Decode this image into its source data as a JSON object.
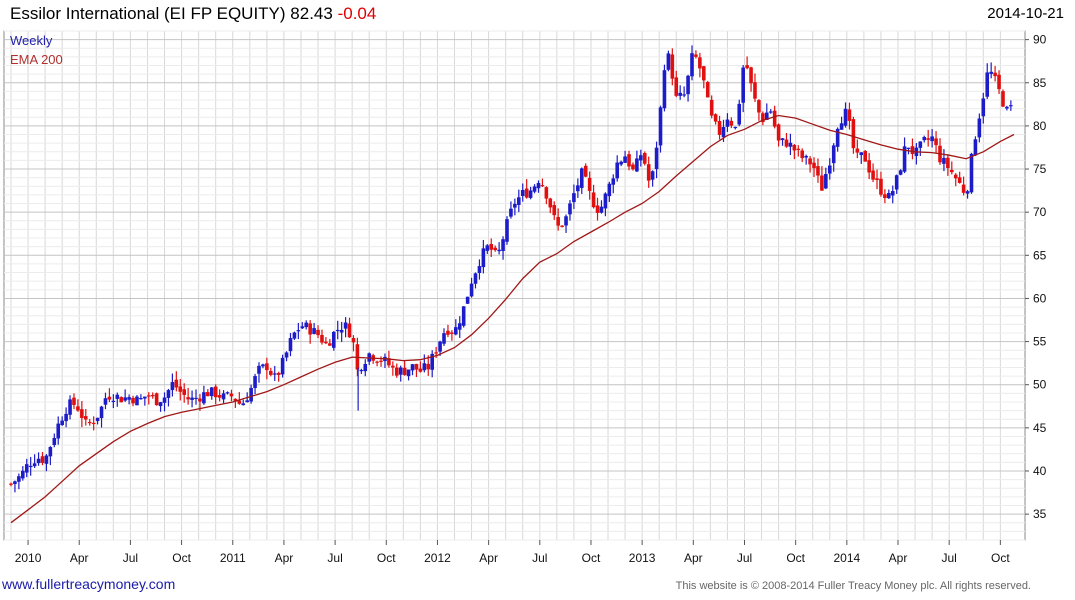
{
  "header": {
    "name": "Essilor International (EI FP EQUITY)",
    "last": "82.43",
    "change": "-0.04",
    "date": "2014-10-21"
  },
  "footer": {
    "link": "www.fullertreacymoney.com",
    "copyright": "This website is © 2008-2014 Fuller Treacy Money plc. All rights reserved."
  },
  "colors": {
    "up": "#1c1cc8",
    "down": "#e01010",
    "ema": "#a01818",
    "grid": "#d8d8d8"
  },
  "chart_data": {
    "type": "candlestick",
    "title": "Essilor International (EI FP EQUITY) 82.43 -0.04",
    "frequency": "Weekly",
    "legend": [
      "Weekly",
      "EMA 200"
    ],
    "ylim": [
      32,
      91
    ],
    "y_ticks": [
      35,
      40,
      45,
      50,
      55,
      60,
      65,
      70,
      75,
      80,
      85,
      90
    ],
    "x_ticks": [
      {
        "label": "2010",
        "month": 12
      },
      {
        "label": "Apr",
        "month": 15
      },
      {
        "label": "Jul",
        "month": 18
      },
      {
        "label": "Oct",
        "month": 21
      },
      {
        "label": "2011",
        "month": 24
      },
      {
        "label": "Apr",
        "month": 27
      },
      {
        "label": "Jul",
        "month": 30
      },
      {
        "label": "Oct",
        "month": 33
      },
      {
        "label": "2012",
        "month": 36
      },
      {
        "label": "Apr",
        "month": 39
      },
      {
        "label": "Jul",
        "month": 42
      },
      {
        "label": "Oct",
        "month": 45
      },
      {
        "label": "2013",
        "month": 48
      },
      {
        "label": "Apr",
        "month": 51
      },
      {
        "label": "Jul",
        "month": 54
      },
      {
        "label": "Oct",
        "month": 57
      },
      {
        "label": "2014",
        "month": 60
      },
      {
        "label": "Apr",
        "month": 63
      },
      {
        "label": "Jul",
        "month": 66
      },
      {
        "label": "Oct",
        "month": 69
      }
    ],
    "x_range_months": [
      11.0,
      69.8
    ],
    "close_path": [
      [
        11.0,
        38.5
      ],
      [
        11.6,
        39.5
      ],
      [
        12.0,
        40.8
      ],
      [
        12.5,
        41.6
      ],
      [
        13.0,
        41.3
      ],
      [
        13.4,
        43.5
      ],
      [
        13.8,
        45.5
      ],
      [
        14.2,
        47.2
      ],
      [
        14.6,
        47.9
      ],
      [
        15.0,
        47.2
      ],
      [
        15.4,
        45.3
      ],
      [
        15.8,
        45.8
      ],
      [
        16.2,
        46.8
      ],
      [
        16.6,
        48.8
      ],
      [
        17.0,
        48.8
      ],
      [
        17.5,
        48.4
      ],
      [
        18.0,
        48.6
      ],
      [
        18.5,
        48.1
      ],
      [
        19.0,
        48.9
      ],
      [
        19.5,
        48.2
      ],
      [
        20.0,
        48.6
      ],
      [
        20.5,
        50.2
      ],
      [
        21.0,
        49.0
      ],
      [
        21.5,
        48.2
      ],
      [
        22.0,
        48.6
      ],
      [
        22.5,
        49.1
      ],
      [
        23.0,
        49.0
      ],
      [
        23.5,
        48.5
      ],
      [
        24.0,
        48.7
      ],
      [
        24.5,
        47.6
      ],
      [
        25.0,
        49.2
      ],
      [
        25.5,
        51.6
      ],
      [
        26.0,
        52.2
      ],
      [
        26.5,
        50.6
      ],
      [
        27.0,
        52.8
      ],
      [
        27.5,
        55.6
      ],
      [
        28.0,
        56.9
      ],
      [
        28.5,
        56.5
      ],
      [
        29.0,
        55.8
      ],
      [
        29.5,
        54.6
      ],
      [
        30.0,
        56.2
      ],
      [
        30.5,
        57.0
      ],
      [
        31.0,
        55.8
      ],
      [
        31.3,
        51.6
      ],
      [
        31.6,
        52.6
      ],
      [
        32.0,
        53.6
      ],
      [
        32.5,
        53.1
      ],
      [
        33.0,
        52.6
      ],
      [
        33.5,
        51.6
      ],
      [
        34.0,
        51.6
      ],
      [
        34.5,
        52.1
      ],
      [
        35.0,
        51.6
      ],
      [
        35.5,
        52.1
      ],
      [
        36.0,
        54.6
      ],
      [
        36.5,
        56.6
      ],
      [
        37.0,
        56.1
      ],
      [
        37.5,
        58.6
      ],
      [
        38.0,
        62.1
      ],
      [
        38.5,
        64.6
      ],
      [
        39.0,
        66.1
      ],
      [
        39.5,
        64.6
      ],
      [
        40.0,
        68.1
      ],
      [
        40.5,
        71.1
      ],
      [
        41.0,
        72.1
      ],
      [
        41.5,
        72.6
      ],
      [
        42.0,
        74.1
      ],
      [
        42.5,
        71.6
      ],
      [
        43.0,
        68.1
      ],
      [
        43.5,
        69.1
      ],
      [
        44.0,
        72.1
      ],
      [
        44.5,
        74.6
      ],
      [
        45.0,
        71.6
      ],
      [
        45.5,
        70.1
      ],
      [
        46.0,
        72.6
      ],
      [
        46.5,
        75.6
      ],
      [
        47.0,
        76.6
      ],
      [
        47.5,
        74.6
      ],
      [
        48.0,
        77.1
      ],
      [
        48.5,
        72.6
      ],
      [
        49.0,
        80.1
      ],
      [
        49.3,
        87.1
      ],
      [
        49.6,
        88.1
      ],
      [
        50.0,
        83.1
      ],
      [
        50.5,
        83.6
      ],
      [
        51.0,
        88.6
      ],
      [
        51.5,
        86.1
      ],
      [
        52.0,
        81.1
      ],
      [
        52.5,
        79.1
      ],
      [
        53.0,
        81.1
      ],
      [
        53.5,
        79.6
      ],
      [
        54.0,
        88.1
      ],
      [
        54.5,
        83.6
      ],
      [
        55.0,
        80.6
      ],
      [
        55.5,
        82.1
      ],
      [
        56.0,
        78.1
      ],
      [
        56.5,
        78.1
      ],
      [
        57.0,
        77.1
      ],
      [
        57.5,
        76.1
      ],
      [
        58.0,
        75.6
      ],
      [
        58.5,
        72.6
      ],
      [
        59.0,
        76.1
      ],
      [
        59.5,
        80.6
      ],
      [
        60.0,
        81.6
      ],
      [
        60.5,
        76.1
      ],
      [
        61.0,
        76.6
      ],
      [
        61.5,
        74.1
      ],
      [
        62.0,
        72.6
      ],
      [
        62.5,
        71.6
      ],
      [
        63.0,
        74.1
      ],
      [
        63.5,
        78.1
      ],
      [
        64.0,
        76.6
      ],
      [
        64.5,
        78.1
      ],
      [
        65.0,
        78.6
      ],
      [
        65.5,
        76.1
      ],
      [
        66.0,
        75.1
      ],
      [
        66.5,
        73.6
      ],
      [
        67.0,
        72.1
      ],
      [
        67.5,
        78.6
      ],
      [
        68.0,
        83.6
      ],
      [
        68.3,
        86.6
      ],
      [
        68.6,
        85.6
      ],
      [
        69.0,
        83.6
      ],
      [
        69.4,
        81.6
      ],
      [
        69.8,
        82.4
      ]
    ],
    "ema_path": [
      [
        11.0,
        34.0
      ],
      [
        12.0,
        35.5
      ],
      [
        13.0,
        37.0
      ],
      [
        14.0,
        38.8
      ],
      [
        15.0,
        40.6
      ],
      [
        16.0,
        42.0
      ],
      [
        17.0,
        43.4
      ],
      [
        18.0,
        44.6
      ],
      [
        19.0,
        45.5
      ],
      [
        20.0,
        46.3
      ],
      [
        21.0,
        46.8
      ],
      [
        22.0,
        47.2
      ],
      [
        23.0,
        47.6
      ],
      [
        24.0,
        48.0
      ],
      [
        25.0,
        48.6
      ],
      [
        26.0,
        49.2
      ],
      [
        27.0,
        50.0
      ],
      [
        28.0,
        50.9
      ],
      [
        29.0,
        51.8
      ],
      [
        30.0,
        52.6
      ],
      [
        31.0,
        53.2
      ],
      [
        32.0,
        53.1
      ],
      [
        33.0,
        53.0
      ],
      [
        34.0,
        52.8
      ],
      [
        35.0,
        52.9
      ],
      [
        36.0,
        53.4
      ],
      [
        37.0,
        54.3
      ],
      [
        38.0,
        55.8
      ],
      [
        39.0,
        57.7
      ],
      [
        40.0,
        59.9
      ],
      [
        41.0,
        62.3
      ],
      [
        42.0,
        64.2
      ],
      [
        43.0,
        65.2
      ],
      [
        44.0,
        66.6
      ],
      [
        45.0,
        67.7
      ],
      [
        46.0,
        68.8
      ],
      [
        47.0,
        70.0
      ],
      [
        48.0,
        71.0
      ],
      [
        49.0,
        72.4
      ],
      [
        50.0,
        74.2
      ],
      [
        51.0,
        75.9
      ],
      [
        52.0,
        77.6
      ],
      [
        53.0,
        78.9
      ],
      [
        54.0,
        79.6
      ],
      [
        55.0,
        80.6
      ],
      [
        56.0,
        81.2
      ],
      [
        57.0,
        80.9
      ],
      [
        58.0,
        80.2
      ],
      [
        59.0,
        79.5
      ],
      [
        60.0,
        79.0
      ],
      [
        61.0,
        78.4
      ],
      [
        62.0,
        77.8
      ],
      [
        63.0,
        77.3
      ],
      [
        64.0,
        77.0
      ],
      [
        65.0,
        76.9
      ],
      [
        66.0,
        76.6
      ],
      [
        67.0,
        76.2
      ],
      [
        68.0,
        77.0
      ],
      [
        69.0,
        78.2
      ],
      [
        69.8,
        79.0
      ]
    ]
  }
}
